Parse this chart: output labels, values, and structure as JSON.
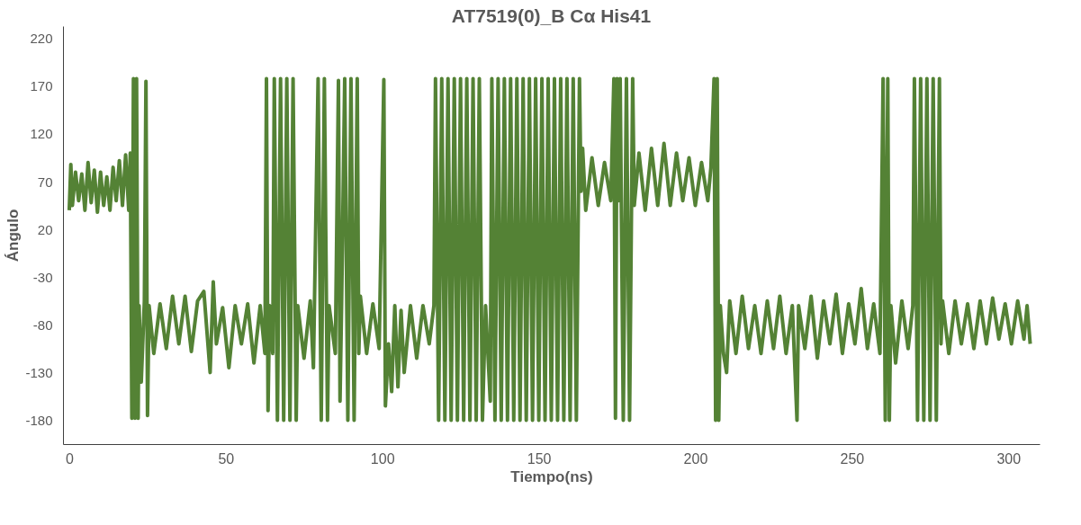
{
  "chart_data": {
    "type": "line",
    "title": "AT7519(0)_B Cα His41",
    "xlabel": "Tiempo(ns)",
    "ylabel": "Ángulo",
    "xlim": [
      -2,
      310
    ],
    "xticks": [
      0,
      50,
      100,
      150,
      200,
      250,
      300
    ],
    "ylim": [
      -205,
      233
    ],
    "yticks": [
      -180,
      -130,
      -80,
      -30,
      20,
      70,
      120,
      170,
      220
    ],
    "grid": false,
    "marker": "none",
    "line_style": "solid",
    "series": [
      {
        "color": "#548235",
        "x": [
          0,
          0.5,
          1,
          2,
          3,
          4,
          5,
          6,
          7,
          8,
          9,
          10,
          11,
          12,
          13,
          14,
          15,
          16,
          17,
          18,
          19,
          19.5,
          20,
          20.5,
          21,
          21.5,
          22,
          22.3,
          23,
          24,
          24.5,
          25,
          25.5,
          27,
          29,
          31,
          33,
          35,
          37,
          39,
          41,
          43,
          45,
          46,
          47,
          49,
          51,
          53,
          55,
          57,
          59,
          61,
          62.5,
          63,
          63.5,
          64,
          65,
          65.5,
          66.5,
          67.5,
          68.5,
          69.5,
          70.5,
          71.5,
          72.5,
          73,
          75,
          77,
          78,
          79.5,
          80.5,
          81.5,
          82.5,
          83,
          85,
          86,
          86.5,
          87,
          88,
          89,
          90,
          91,
          92,
          92.5,
          93,
          95,
          97,
          99,
          100.5,
          101,
          102,
          103,
          104,
          105,
          106,
          107,
          109,
          111,
          113,
          115,
          116.5,
          117,
          118,
          119,
          120,
          121,
          122,
          123,
          124,
          125,
          126,
          127,
          128,
          129,
          130,
          131,
          132,
          133,
          134.5,
          135,
          136,
          137,
          138,
          139,
          140,
          141,
          142,
          143,
          144,
          145,
          146,
          147,
          148,
          149,
          150,
          151,
          152,
          153,
          154,
          155,
          156,
          157,
          158,
          159,
          160,
          161,
          162,
          163,
          163.5,
          164,
          165,
          167,
          169,
          171,
          173,
          174,
          174.5,
          175,
          175.5,
          176,
          177,
          178,
          179,
          180,
          180.5,
          182,
          184,
          186,
          188,
          190,
          192,
          194,
          196,
          198,
          200,
          202,
          204,
          205,
          206,
          206.5,
          207,
          207.5,
          208,
          209,
          210,
          211,
          213,
          215,
          217,
          219,
          221,
          223,
          225,
          227,
          229,
          231,
          232.5,
          233,
          235,
          237,
          239,
          241,
          243,
          245,
          247,
          249,
          251,
          253,
          255,
          257,
          259,
          260,
          260.7,
          261.5,
          262,
          262.5,
          264,
          266,
          268,
          269.5,
          270,
          271,
          272,
          273,
          274,
          275,
          276,
          277,
          278,
          278.5,
          279,
          281,
          283,
          285,
          287,
          289,
          291,
          293,
          295,
          297,
          299,
          301,
          303,
          305,
          306,
          307
        ],
        "values": [
          40,
          88,
          45,
          80,
          50,
          78,
          40,
          90,
          48,
          82,
          38,
          80,
          45,
          75,
          40,
          85,
          50,
          92,
          45,
          98,
          40,
          100,
          -178,
          178,
          -178,
          178,
          -178,
          -60,
          -140,
          -55,
          175,
          -175,
          -60,
          -110,
          -58,
          -105,
          -50,
          -100,
          -50,
          -108,
          -55,
          -45,
          -130,
          -35,
          -100,
          -62,
          -125,
          -60,
          -100,
          -58,
          -120,
          -60,
          -110,
          178,
          -170,
          -60,
          -110,
          178,
          -180,
          178,
          -180,
          178,
          -180,
          178,
          -180,
          -60,
          -115,
          -55,
          -125,
          178,
          -180,
          178,
          -180,
          -60,
          -110,
          176,
          -160,
          -60,
          178,
          -180,
          178,
          -180,
          178,
          -110,
          -50,
          -110,
          -58,
          -105,
          177,
          -165,
          -100,
          -150,
          -60,
          -145,
          -65,
          -130,
          -60,
          -115,
          -60,
          -100,
          -60,
          178,
          -180,
          178,
          -180,
          178,
          -180,
          178,
          -180,
          178,
          -180,
          178,
          -180,
          178,
          -180,
          178,
          -180,
          -60,
          -160,
          178,
          -180,
          178,
          -180,
          178,
          -180,
          178,
          -180,
          178,
          -180,
          178,
          -180,
          178,
          -180,
          178,
          -180,
          178,
          -180,
          178,
          -180,
          178,
          -180,
          178,
          -180,
          178,
          -180,
          178,
          -180,
          178,
          60,
          105,
          40,
          95,
          45,
          90,
          50,
          178,
          -178,
          178,
          50,
          178,
          -180,
          178,
          -180,
          178,
          45,
          100,
          40,
          105,
          45,
          110,
          45,
          100,
          50,
          95,
          45,
          90,
          50,
          85,
          178,
          -180,
          178,
          -180,
          -60,
          -110,
          -130,
          -55,
          -110,
          -50,
          -105,
          -60,
          -110,
          -55,
          -105,
          -50,
          -110,
          -60,
          -180,
          -60,
          -105,
          -50,
          -115,
          -55,
          -100,
          -48,
          -110,
          -58,
          -100,
          -42,
          -105,
          -58,
          -110,
          178,
          -180,
          178,
          -180,
          -60,
          -120,
          -55,
          -105,
          -60,
          178,
          -180,
          178,
          -180,
          178,
          -180,
          178,
          -180,
          178,
          -100,
          -55,
          -110,
          -55,
          -100,
          -58,
          -105,
          -55,
          -100,
          -52,
          -95,
          -58,
          -100,
          -55,
          -95,
          -60,
          -100
        ]
      }
    ]
  }
}
